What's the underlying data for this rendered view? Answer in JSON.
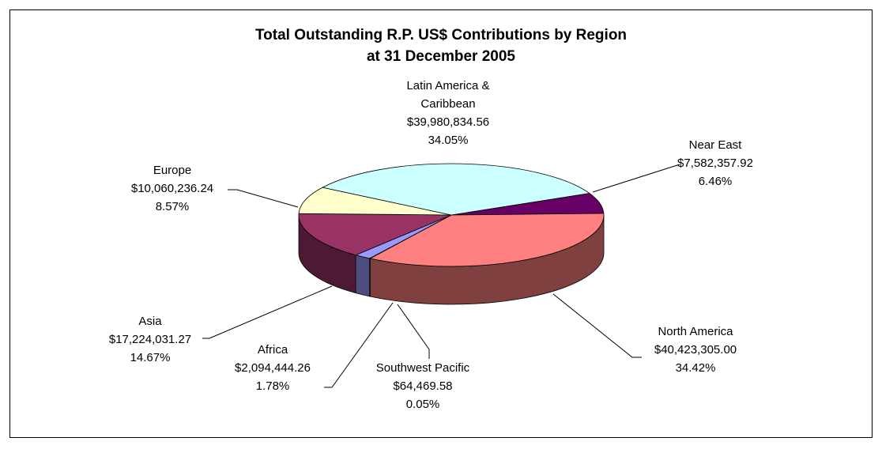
{
  "chart_data": {
    "type": "pie",
    "title": "Total Outstanding R.P. US$ Contributions by Region",
    "subtitle": "at 31 December 2005",
    "categories": [
      "Near East",
      "North America",
      "Southwest Pacific",
      "Africa",
      "Asia",
      "Europe",
      "Latin America & Caribbean"
    ],
    "values": [
      7582357.92,
      40423305.0,
      64469.58,
      2094444.26,
      17224031.27,
      10060236.24,
      39980834.56
    ],
    "value_labels": [
      "$7,582,357.92",
      "$40,423,305.00",
      "$64,469.58",
      "$2,094,444.26",
      "$17,224,031.27",
      "$10,060,236.24",
      "$39,980,834.56"
    ],
    "percents": [
      6.46,
      34.42,
      0.05,
      1.78,
      14.67,
      8.57,
      34.05
    ],
    "percent_labels": [
      "6.46%",
      "34.42%",
      "0.05%",
      "1.78%",
      "14.67%",
      "8.57%",
      "34.05%"
    ],
    "colors": [
      "#660066",
      "#FF8080",
      "#0066CC",
      "#9999FF",
      "#993366",
      "#FFFFCC",
      "#CCFFFF"
    ]
  }
}
